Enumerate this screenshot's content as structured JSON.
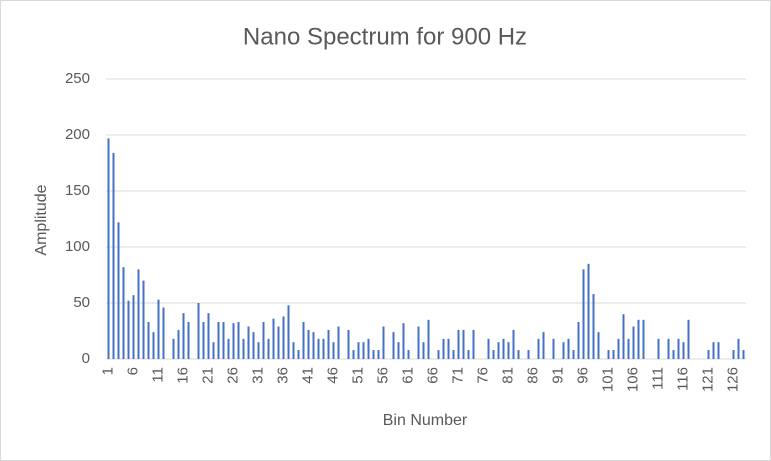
{
  "chart_data": {
    "type": "bar",
    "title": "Nano Spectrum for 900 Hz",
    "x_label": "Bin Number",
    "y_label": "Amplitude",
    "categories": [
      "1",
      null,
      null,
      null,
      null,
      "6",
      null,
      null,
      null,
      null,
      "11",
      null,
      null,
      null,
      null,
      "16",
      null,
      null,
      null,
      null,
      "21",
      null,
      null,
      null,
      null,
      "26",
      null,
      null,
      null,
      null,
      "31",
      null,
      null,
      null,
      null,
      "36",
      null,
      null,
      null,
      null,
      "41",
      null,
      null,
      null,
      null,
      "46",
      null,
      null,
      null,
      null,
      "51",
      null,
      null,
      null,
      null,
      "56",
      null,
      null,
      null,
      null,
      "61",
      null,
      null,
      null,
      null,
      "66",
      null,
      null,
      null,
      null,
      "71",
      null,
      null,
      null,
      null,
      "76",
      null,
      null,
      null,
      null,
      "81",
      null,
      null,
      null,
      null,
      "86",
      null,
      null,
      null,
      null,
      "91",
      null,
      null,
      null,
      null,
      "96",
      null,
      null,
      null,
      null,
      "101",
      null,
      null,
      null,
      null,
      "106",
      null,
      null,
      null,
      null,
      "111",
      null,
      null,
      null,
      null,
      "116",
      null,
      null,
      null,
      null,
      "121",
      null,
      null,
      null,
      null,
      "126",
      null,
      null
    ],
    "values": [
      197,
      184,
      122,
      82,
      52,
      57,
      80,
      70,
      33,
      24,
      53,
      46,
      0,
      18,
      26,
      41,
      33,
      0,
      50,
      33,
      41,
      15,
      33,
      33,
      18,
      32,
      33,
      18,
      29,
      24,
      15,
      33,
      18,
      36,
      29,
      38,
      48,
      15,
      8,
      33,
      26,
      24,
      18,
      18,
      26,
      15,
      29,
      0,
      26,
      8,
      15,
      15,
      18,
      8,
      8,
      29,
      0,
      24,
      15,
      32,
      8,
      0,
      29,
      15,
      35,
      0,
      8,
      18,
      18,
      8,
      26,
      26,
      8,
      26,
      0,
      0,
      18,
      8,
      15,
      18,
      15,
      26,
      8,
      0,
      8,
      0,
      18,
      24,
      0,
      18,
      0,
      15,
      18,
      8,
      33,
      80,
      85,
      58,
      24,
      0,
      8,
      8,
      18,
      40,
      18,
      29,
      35,
      35,
      0,
      0,
      18,
      0,
      18,
      8,
      18,
      15,
      35,
      0,
      0,
      0,
      8,
      15,
      15,
      0,
      0,
      8,
      18,
      8
    ],
    "color": "#4472c4",
    "ylim": [
      0,
      250
    ],
    "yticks": [
      0,
      50,
      100,
      150,
      200,
      250
    ],
    "grid": true
  }
}
